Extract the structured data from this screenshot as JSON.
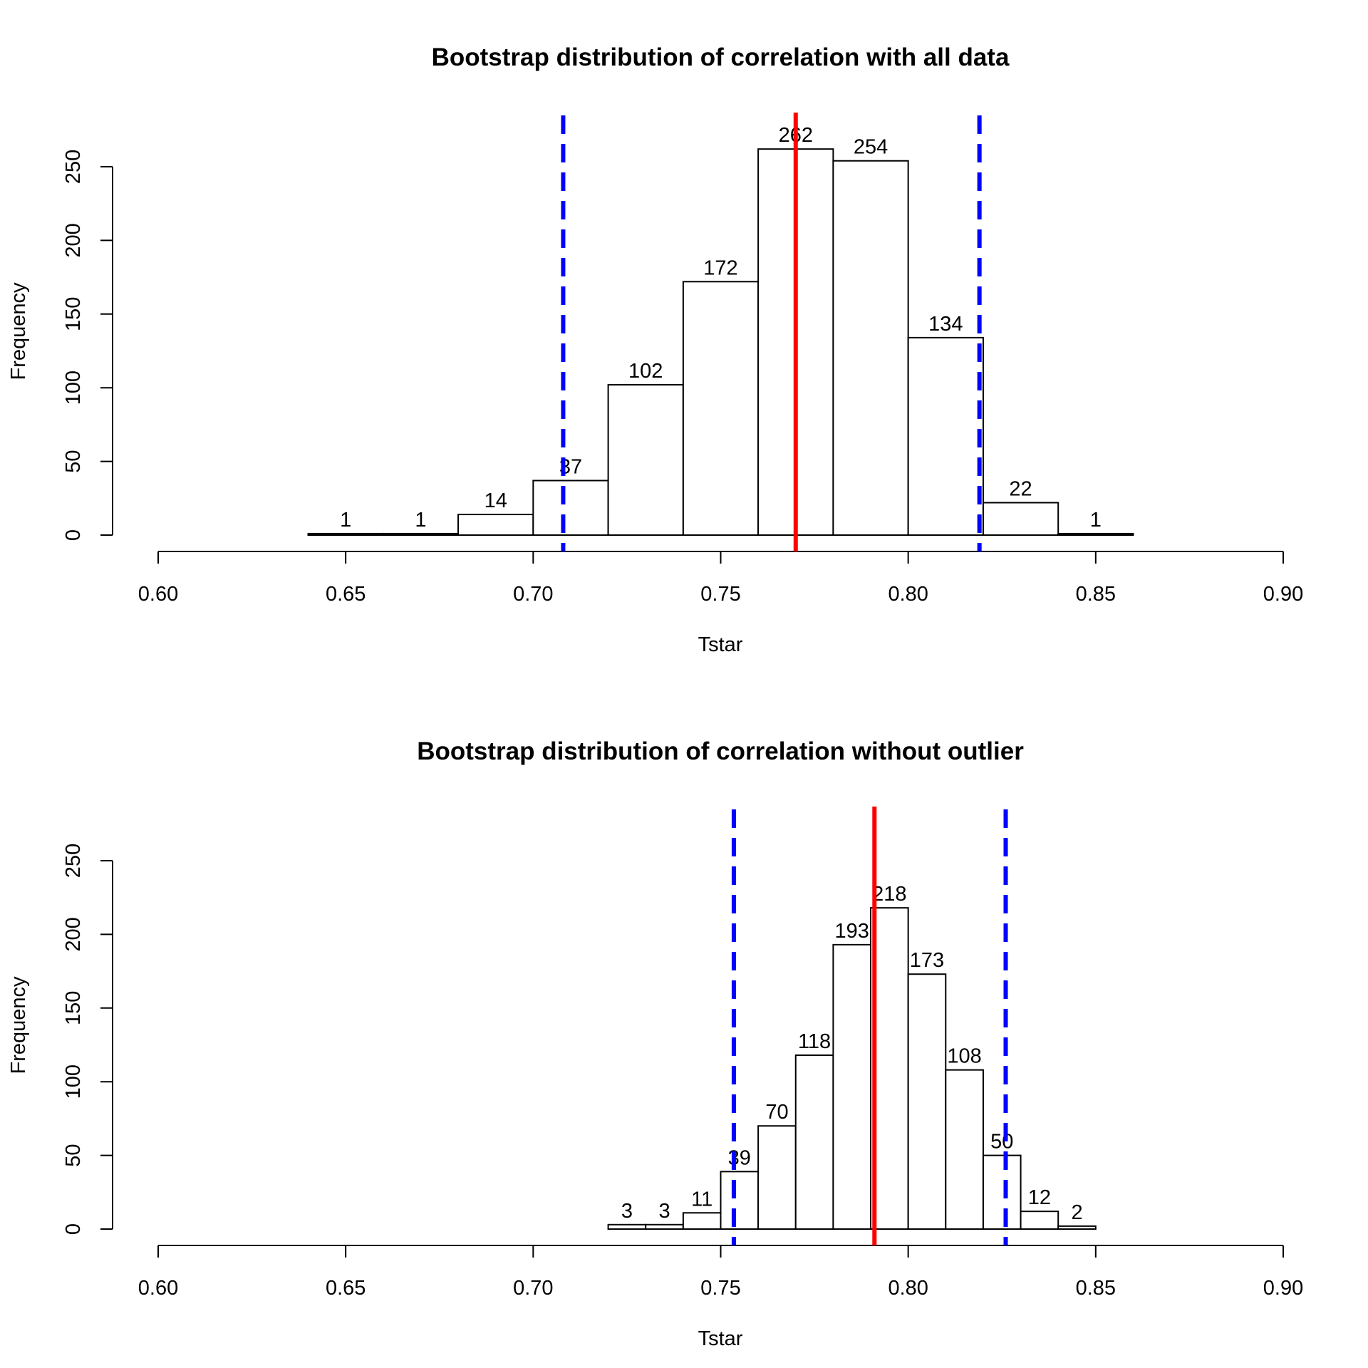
{
  "chart_data": [
    {
      "type": "bar",
      "subtype": "histogram",
      "title": "Bootstrap distribution of correlation with all data",
      "xlabel": "Tstar",
      "ylabel": "Frequency",
      "xlim": [
        0.6,
        0.9
      ],
      "ylim": [
        0,
        250
      ],
      "xticks": [
        "0.60",
        "0.65",
        "0.70",
        "0.75",
        "0.80",
        "0.85",
        "0.90"
      ],
      "yticks": [
        "0",
        "50",
        "100",
        "150",
        "200",
        "250"
      ],
      "bin_edges": [
        0.64,
        0.66,
        0.68,
        0.7,
        0.72,
        0.74,
        0.76,
        0.78,
        0.8,
        0.82,
        0.84,
        0.86
      ],
      "values": [
        1,
        1,
        14,
        37,
        102,
        172,
        262,
        254,
        134,
        22,
        1
      ],
      "value_labels": [
        "1",
        "1",
        "14",
        "37",
        "102",
        "172",
        "262",
        "254",
        "134",
        "22",
        "1"
      ],
      "observed": 0.77,
      "ci": [
        0.708,
        0.819
      ],
      "colors": {
        "observed": "#ff0000",
        "ci": "#0000ff",
        "bars": "#000000"
      }
    },
    {
      "type": "bar",
      "subtype": "histogram",
      "title": "Bootstrap distribution of correlation without outlier",
      "xlabel": "Tstar",
      "ylabel": "Frequency",
      "xlim": [
        0.6,
        0.9
      ],
      "ylim": [
        0,
        250
      ],
      "xticks": [
        "0.60",
        "0.65",
        "0.70",
        "0.75",
        "0.80",
        "0.85",
        "0.90"
      ],
      "yticks": [
        "0",
        "50",
        "100",
        "150",
        "200",
        "250"
      ],
      "bin_edges": [
        0.72,
        0.73,
        0.74,
        0.75,
        0.76,
        0.77,
        0.78,
        0.79,
        0.8,
        0.81,
        0.82,
        0.83,
        0.84,
        0.85
      ],
      "values": [
        3,
        3,
        11,
        39,
        70,
        118,
        193,
        218,
        173,
        108,
        50,
        12,
        2
      ],
      "value_labels": [
        "3",
        "3",
        "11",
        "39",
        "70",
        "118",
        "193",
        "218",
        "173",
        "108",
        "50",
        "12",
        "2"
      ],
      "observed": 0.791,
      "ci": [
        0.7535,
        0.826
      ],
      "colors": {
        "observed": "#ff0000",
        "ci": "#0000ff",
        "bars": "#000000"
      }
    }
  ]
}
